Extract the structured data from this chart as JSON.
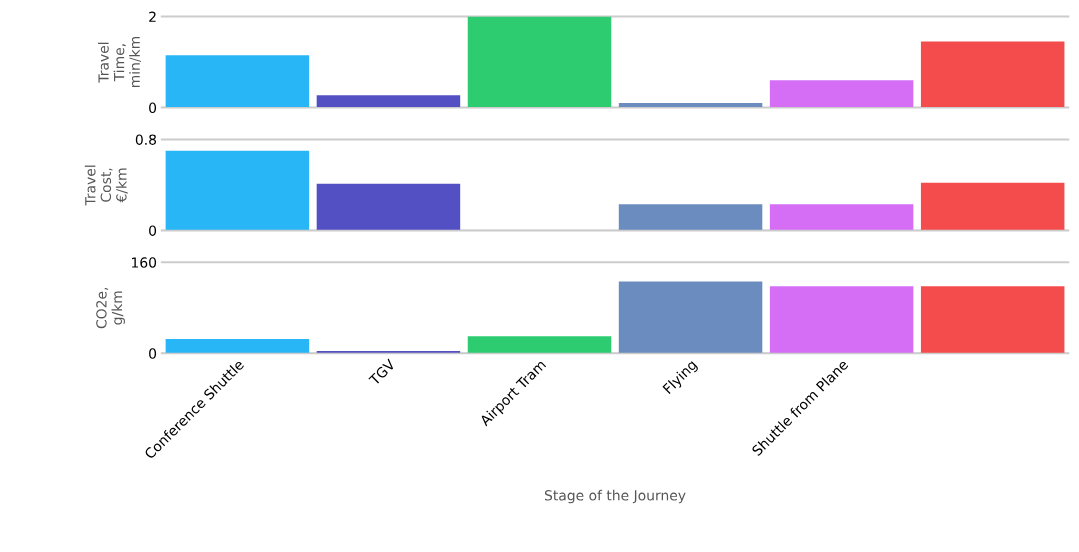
{
  "chart_data": [
    {
      "type": "bar",
      "values": [
        1.15,
        0.27,
        2.0,
        0.1,
        0.6,
        1.45
      ],
      "colors": [
        "#29b6f6",
        "#5350c4",
        "#2ecc71",
        "#6b8cbe",
        "#d56ef5",
        "#f44c4c"
      ],
      "ylabel": "Travel\nTime,\nmin/km",
      "ylim": [
        0,
        2
      ],
      "yticks": [
        0,
        2
      ],
      "grid": "y",
      "tick_labels": "y"
    },
    {
      "type": "bar",
      "values": [
        0.7,
        0.41,
        null,
        0.23,
        0.23,
        0.42
      ],
      "colors": [
        "#29b6f6",
        "#5350c4",
        "#2ecc71",
        "#6b8cbe",
        "#d56ef5",
        "#f44c4c"
      ],
      "ylabel": "Travel\nCost,\n€/km",
      "ylim": [
        0,
        0.8
      ],
      "yticks": [
        0,
        0.8
      ],
      "grid": "y",
      "tick_labels": "y"
    },
    {
      "type": "bar",
      "categories": [
        "Conference Shuttle",
        "TGV",
        "Airport Tram",
        "Flying",
        "Shuttle from Plane",
        null
      ],
      "values": [
        25,
        4,
        30,
        126,
        118,
        118
      ],
      "colors": [
        "#29b6f6",
        "#5350c4",
        "#2ecc71",
        "#6b8cbe",
        "#d56ef5",
        "#f44c4c"
      ],
      "ylabel": "CO2e,\ng/km",
      "xlabel": "Stage of the Journey",
      "ylim": [
        0,
        160
      ],
      "yticks": [
        0,
        160
      ],
      "grid": "y"
    }
  ]
}
